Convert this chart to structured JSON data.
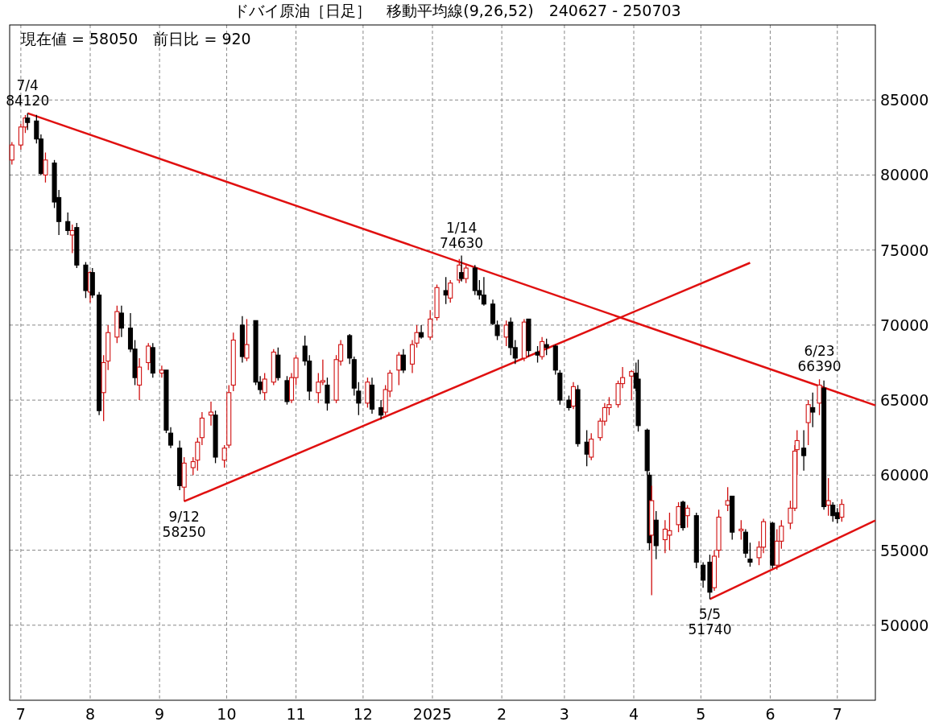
{
  "chart_data": {
    "type": "candlestick",
    "title": "ドバイ原油［日足］　移動平均線(9,26,52)　240627 - 250703",
    "annotations": [
      "現在値 = 58050　前日比 = 920",
      {
        "text": "7/4\n84120",
        "x": "2024-07-04",
        "y": 84120
      },
      {
        "text": "9/12\n58250",
        "x": "2024-09-12",
        "y": 58250
      },
      {
        "text": "1/14\n74630",
        "x": "2025-01-14",
        "y": 74630
      },
      {
        "text": "5/5\n51740",
        "x": "2025-05-05",
        "y": 51740
      },
      {
        "text": "6/23\n66390",
        "x": "2025-06-23",
        "y": 66390
      }
    ],
    "colors": [
      "#d01010",
      "#d01010",
      "#d01010",
      "#000000",
      "#000000",
      "#000000",
      "#d01010",
      "#000000",
      "#000000",
      "#000000",
      "#d01010",
      "#000000",
      "#000000",
      "#d01010",
      "#000000",
      "#000000",
      "#d01010",
      "#d01010",
      "#d01010",
      "#000000",
      "#000000",
      "#000000",
      "#d01010",
      "#d01010",
      "#000000",
      "#d01010",
      "#000000",
      "#000000",
      "#000000",
      "#d01010",
      "#d01010",
      "#d01010",
      "#d01010",
      "#d01010",
      "#000000",
      "#d01010",
      "#d01010",
      "#d01010",
      "#000000",
      "#d01010",
      "#000000",
      "#000000",
      "#d01010",
      "#d01010",
      "#000000",
      "#000000",
      "#d01010",
      "#d01010",
      "#000000",
      "#000000",
      "#d01010",
      "#d01010",
      "#000000",
      "#d01010",
      "#d01010",
      "#000000",
      "#000000",
      "#000000",
      "#d01010",
      "#000000",
      "#000000",
      "#d01010",
      "#d01010",
      "#d01010",
      "#000000",
      "#d01010",
      "#d01010",
      "#000000",
      "#d01010",
      "#d01010",
      "#000000",
      "#d01010",
      "#d01010",
      "#000000",
      "#d01010",
      "#000000",
      "#000000",
      "#000000",
      "#000000",
      "#000000",
      "#d01010",
      "#000000",
      "#000000",
      "#d01010",
      "#000000",
      "#000000",
      "#d01010",
      "#000000",
      "#000000",
      "#000000",
      "#000000",
      "#d01010",
      "#000000",
      "#000000",
      "#d01010",
      "#d01010",
      "#d01010",
      "#d01010",
      "#d01010",
      "#d01010",
      "#d01010",
      "#000000",
      "#000000",
      "#000000",
      "#000000",
      "#d01010",
      "#000000",
      "#d01010",
      "#d01010",
      "#d01010",
      "#000000",
      "#d01010",
      "#000000",
      "#000000",
      "#000000",
      "#d01010",
      "#d01010",
      "#d01010",
      "#000000",
      "#d01010",
      "#000000",
      "#000000",
      "#d01010",
      "#d01010",
      "#000000",
      "#d01010",
      "#d01010",
      "#d01010",
      "#d01010",
      "#d01010",
      "#000000",
      "#d01010",
      "#000000",
      "#d01010",
      "#000000",
      "#d01010",
      "#000000",
      "#000000",
      "#d01010"
    ],
    "x": [
      "2024-06-27",
      "2024-07-01",
      "2024-07-03",
      "2024-07-04",
      "2024-07-08",
      "2024-07-10",
      "2024-07-12",
      "2024-07-16",
      "2024-07-18",
      "2024-07-22",
      "2024-07-24",
      "2024-07-26",
      "2024-07-30",
      "2024-08-01",
      "2024-08-02",
      "2024-08-05",
      "2024-08-07",
      "2024-08-09",
      "2024-08-13",
      "2024-08-15",
      "2024-08-19",
      "2024-08-21",
      "2024-08-23",
      "2024-08-27",
      "2024-08-29",
      "2024-09-02",
      "2024-09-04",
      "2024-09-06",
      "2024-09-10",
      "2024-09-12",
      "2024-09-16",
      "2024-09-18",
      "2024-09-20",
      "2024-09-24",
      "2024-09-26",
      "2024-09-30",
      "2024-10-02",
      "2024-10-04",
      "2024-10-08",
      "2024-10-10",
      "2024-10-14",
      "2024-10-16",
      "2024-10-18",
      "2024-10-22",
      "2024-10-24",
      "2024-10-28",
      "2024-10-30",
      "2024-11-01",
      "2024-11-05",
      "2024-11-07",
      "2024-11-11",
      "2024-11-13",
      "2024-11-15",
      "2024-11-19",
      "2024-11-21",
      "2024-11-25",
      "2024-11-27",
      "2024-11-29",
      "2024-12-03",
      "2024-12-05",
      "2024-12-09",
      "2024-12-11",
      "2024-12-13",
      "2024-12-17",
      "2024-12-19",
      "2024-12-23",
      "2024-12-25",
      "2024-12-27",
      "2024-12-31",
      "2025-01-03",
      "2025-01-07",
      "2025-01-09",
      "2025-01-13",
      "2025-01-14",
      "2025-01-16",
      "2025-01-20",
      "2025-01-22",
      "2025-01-24",
      "2025-01-28",
      "2025-01-30",
      "2025-02-03",
      "2025-02-05",
      "2025-02-07",
      "2025-02-11",
      "2025-02-13",
      "2025-02-17",
      "2025-02-19",
      "2025-02-21",
      "2025-02-25",
      "2025-02-27",
      "2025-03-03",
      "2025-03-05",
      "2025-03-07",
      "2025-03-11",
      "2025-03-13",
      "2025-03-17",
      "2025-03-19",
      "2025-03-21",
      "2025-03-25",
      "2025-03-27",
      "2025-03-31",
      "2025-04-02",
      "2025-04-03",
      "2025-04-07",
      "2025-04-08",
      "2025-04-09",
      "2025-04-11",
      "2025-04-15",
      "2025-04-17",
      "2025-04-21",
      "2025-04-23",
      "2025-04-25",
      "2025-04-29",
      "2025-05-02",
      "2025-05-05",
      "2025-05-07",
      "2025-05-09",
      "2025-05-13",
      "2025-05-15",
      "2025-05-19",
      "2025-05-21",
      "2025-05-23",
      "2025-05-27",
      "2025-05-29",
      "2025-06-02",
      "2025-06-04",
      "2025-06-06",
      "2025-06-10",
      "2025-06-12",
      "2025-06-13",
      "2025-06-16",
      "2025-06-18",
      "2025-06-20",
      "2025-06-23",
      "2025-06-25",
      "2025-06-27",
      "2025-06-29",
      "2025-07-01",
      "2025-07-03"
    ],
    "ohlc": [
      [
        81000,
        82200,
        80700,
        82000
      ],
      [
        82000,
        83400,
        81700,
        83200
      ],
      [
        83200,
        84000,
        82800,
        83800
      ],
      [
        83800,
        84120,
        83000,
        83500
      ],
      [
        83600,
        84000,
        82100,
        82400
      ],
      [
        82400,
        82700,
        80000,
        80100
      ],
      [
        80000,
        81500,
        79500,
        81000
      ],
      [
        80800,
        81000,
        77800,
        78200
      ],
      [
        78500,
        79000,
        76000,
        76900
      ],
      [
        76900,
        77500,
        76000,
        76300
      ],
      [
        76000,
        76700,
        74800,
        76300
      ],
      [
        76500,
        76800,
        73800,
        74000
      ],
      [
        74000,
        74200,
        71800,
        72300
      ],
      [
        72200,
        73600,
        71500,
        73500
      ],
      [
        73500,
        73800,
        71800,
        72000
      ],
      [
        72000,
        72200,
        64000,
        64300
      ],
      [
        65500,
        68000,
        63600,
        67500
      ],
      [
        67600,
        70000,
        67000,
        69500
      ],
      [
        69200,
        71300,
        68800,
        70900
      ],
      [
        70800,
        71300,
        69200,
        69800
      ],
      [
        69800,
        70800,
        68200,
        68400
      ],
      [
        68400,
        69000,
        66000,
        66500
      ],
      [
        66000,
        67800,
        65000,
        67200
      ],
      [
        67500,
        68800,
        67000,
        68600
      ],
      [
        68500,
        68800,
        66500,
        66800
      ],
      [
        66800,
        67300,
        66500,
        67000
      ],
      [
        67000,
        67000,
        62800,
        63000
      ],
      [
        62800,
        63200,
        61800,
        62000
      ],
      [
        61800,
        62300,
        59000,
        59300
      ],
      [
        59200,
        61200,
        58250,
        60800
      ],
      [
        60500,
        61200,
        60000,
        60900
      ],
      [
        61000,
        62500,
        60300,
        62200
      ],
      [
        62500,
        64200,
        62000,
        63800
      ],
      [
        64000,
        64900,
        63300,
        64200
      ],
      [
        64000,
        64300,
        60800,
        61200
      ],
      [
        61000,
        62000,
        60500,
        61800
      ],
      [
        62000,
        66000,
        61800,
        65500
      ],
      [
        66000,
        69500,
        65600,
        69000
      ],
      [
        70000,
        70600,
        67500,
        67900
      ],
      [
        67800,
        70400,
        67600,
        68700
      ],
      [
        70300,
        70300,
        66000,
        66200
      ],
      [
        66200,
        66600,
        65400,
        65700
      ],
      [
        65500,
        66800,
        65000,
        66400
      ],
      [
        66200,
        68400,
        66000,
        68200
      ],
      [
        68000,
        68500,
        66300,
        66500
      ],
      [
        66300,
        66600,
        64700,
        64900
      ],
      [
        65000,
        66800,
        64800,
        66500
      ],
      [
        66500,
        68000,
        66000,
        67800
      ],
      [
        68600,
        69300,
        67300,
        67600
      ],
      [
        67600,
        68000,
        65000,
        65600
      ],
      [
        65500,
        66800,
        64800,
        66200
      ],
      [
        66200,
        67700,
        66000,
        66300
      ],
      [
        66000,
        66500,
        64300,
        64800
      ],
      [
        65000,
        68000,
        64800,
        67700
      ],
      [
        67600,
        69000,
        67300,
        68700
      ],
      [
        69300,
        69400,
        67400,
        67800
      ],
      [
        67700,
        67900,
        65300,
        65800
      ],
      [
        65600,
        66200,
        64000,
        64800
      ],
      [
        64800,
        66500,
        64500,
        66200
      ],
      [
        66000,
        66500,
        64100,
        64400
      ],
      [
        64500,
        65000,
        63700,
        64000
      ],
      [
        64200,
        66000,
        64000,
        65700
      ],
      [
        65600,
        67000,
        65200,
        66800
      ],
      [
        67000,
        68200,
        66000,
        68000
      ],
      [
        68000,
        68400,
        66800,
        67000
      ],
      [
        67400,
        69000,
        66800,
        68700
      ],
      [
        68800,
        70000,
        68500,
        69500
      ],
      [
        69500,
        70000,
        69100,
        69200
      ],
      [
        69200,
        71000,
        69000,
        70400
      ],
      [
        70500,
        72700,
        70300,
        72500
      ],
      [
        72300,
        73200,
        71400,
        72000
      ],
      [
        71800,
        73000,
        71500,
        72800
      ],
      [
        73000,
        74400,
        72800,
        74000
      ],
      [
        73500,
        74630,
        72900,
        73100
      ],
      [
        73100,
        74000,
        72800,
        73800
      ],
      [
        73800,
        74000,
        72000,
        72300
      ],
      [
        72300,
        73000,
        71700,
        72000
      ],
      [
        72000,
        73200,
        71300,
        71400
      ],
      [
        71400,
        71700,
        70000,
        70100
      ],
      [
        70000,
        70300,
        69000,
        69300
      ],
      [
        69200,
        70300,
        68600,
        70000
      ],
      [
        70200,
        70500,
        68000,
        68500
      ],
      [
        68500,
        69000,
        67400,
        67800
      ],
      [
        67800,
        70400,
        67600,
        70200
      ],
      [
        70400,
        70400,
        67900,
        68300
      ],
      [
        68200,
        68600,
        67500,
        68000
      ],
      [
        67900,
        69200,
        67700,
        68900
      ],
      [
        68700,
        69100,
        68000,
        68500
      ],
      [
        68600,
        68700,
        66700,
        67000
      ],
      [
        66800,
        67000,
        64700,
        65000
      ],
      [
        65000,
        65300,
        64300,
        64500
      ],
      [
        64600,
        66200,
        64400,
        65900
      ],
      [
        65700,
        66000,
        61900,
        62100
      ],
      [
        62200,
        63000,
        60600,
        61400
      ],
      [
        61200,
        62800,
        61000,
        62400
      ],
      [
        62500,
        63800,
        62300,
        63600
      ],
      [
        63600,
        64800,
        63300,
        64500
      ],
      [
        64500,
        65200,
        64000,
        64700
      ],
      [
        64700,
        66300,
        64500,
        66100
      ],
      [
        66100,
        67200,
        65800,
        66500
      ],
      [
        66600,
        67000,
        65000,
        66900
      ],
      [
        66800,
        67500,
        65600,
        65800
      ],
      [
        66400,
        67700,
        62900,
        63300
      ],
      [
        63000,
        63100,
        60000,
        60300
      ],
      [
        60000,
        60200,
        55000,
        55500
      ],
      [
        56000,
        59300,
        52000,
        58300
      ],
      [
        57000,
        57600,
        54400,
        55300
      ],
      [
        55700,
        57000,
        54800,
        56400
      ],
      [
        56000,
        57500,
        55000,
        56300
      ],
      [
        56700,
        58200,
        56200,
        57900
      ],
      [
        58200,
        58300,
        56300,
        56500
      ],
      [
        57300,
        58000,
        56500,
        57800
      ],
      [
        57300,
        57500,
        53800,
        54200
      ],
      [
        54000,
        54200,
        52500,
        53000
      ],
      [
        54200,
        54700,
        51740,
        52200
      ],
      [
        52500,
        55000,
        52300,
        54600
      ],
      [
        55000,
        57700,
        54500,
        57200
      ],
      [
        58000,
        59200,
        57600,
        58300
      ],
      [
        58600,
        58600,
        55700,
        56200
      ],
      [
        56300,
        57000,
        55700,
        56400
      ],
      [
        56200,
        56400,
        54500,
        54800
      ],
      [
        54400,
        55500,
        53900,
        54200
      ],
      [
        54500,
        55600,
        54000,
        55200
      ],
      [
        55200,
        57100,
        54800,
        56900
      ],
      [
        56800,
        56900,
        53800,
        54000
      ],
      [
        54000,
        56400,
        53700,
        55600
      ],
      [
        55600,
        57000,
        55100,
        56600
      ],
      [
        56800,
        58300,
        56400,
        57800
      ],
      [
        57800,
        62000,
        57600,
        61600
      ],
      [
        61700,
        63000,
        60000,
        62300
      ],
      [
        61800,
        63000,
        60300,
        61300
      ],
      [
        63500,
        65000,
        62000,
        64700
      ],
      [
        64500,
        65500,
        63200,
        64200
      ],
      [
        64800,
        66390,
        64000,
        66000
      ],
      [
        65800,
        66300,
        57700,
        57900
      ],
      [
        58000,
        59800,
        57300,
        58300
      ],
      [
        58000,
        58200,
        56900,
        57300
      ],
      [
        57500,
        57800,
        56800,
        57100
      ],
      [
        57200,
        58400,
        56900,
        58050
      ]
    ],
    "series": [
      {
        "type": "line",
        "color": "#e01010",
        "x": [
          "2024-07-04",
          "2025-07-18"
        ],
        "values": [
          84120,
          64650
        ]
      },
      {
        "type": "line",
        "color": "#e01010",
        "x": [
          "2024-09-12",
          "2025-05-23"
        ],
        "values": [
          58250,
          74150
        ]
      },
      {
        "type": "line",
        "color": "#e01010",
        "x": [
          "2025-05-05",
          "2025-07-18"
        ],
        "values": [
          51740,
          56980
        ]
      }
    ],
    "xlim": [
      "2024-06-26",
      "2025-07-18"
    ],
    "xticks": [
      {
        "value": "2024-07-01",
        "label": "7"
      },
      {
        "value": "2024-08-01",
        "label": "8"
      },
      {
        "value": "2024-09-01",
        "label": "9"
      },
      {
        "value": "2024-10-01",
        "label": "10"
      },
      {
        "value": "2024-11-01",
        "label": "11"
      },
      {
        "value": "2024-12-01",
        "label": "12"
      },
      {
        "value": "2025-01-01",
        "label": "2025"
      },
      {
        "value": "2025-02-01",
        "label": "2"
      },
      {
        "value": "2025-03-01",
        "label": "3"
      },
      {
        "value": "2025-04-01",
        "label": "4"
      },
      {
        "value": "2025-05-01",
        "label": "5"
      },
      {
        "value": "2025-06-01",
        "label": "6"
      },
      {
        "value": "2025-07-01",
        "label": "7"
      }
    ],
    "ylim": [
      45000,
      90000
    ],
    "yticks": [
      50000,
      55000,
      60000,
      65000,
      70000,
      75000,
      80000,
      85000
    ],
    "grid": true
  }
}
